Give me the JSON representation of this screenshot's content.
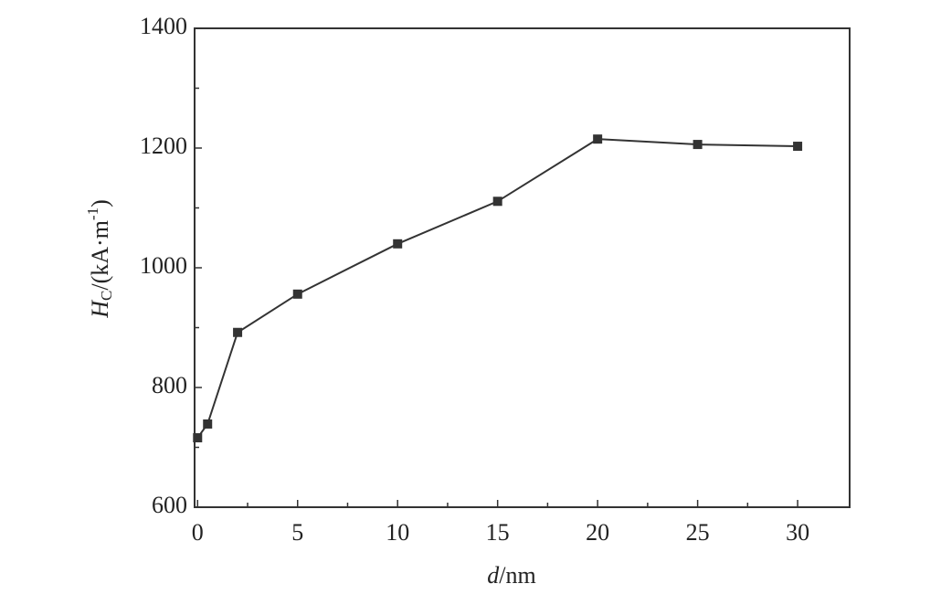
{
  "chart_data": {
    "type": "line",
    "x": [
      0,
      0.5,
      2,
      5,
      10,
      15,
      20,
      25,
      30
    ],
    "series": [
      {
        "color": "#333333",
        "values": [
          716,
          739,
          892,
          956,
          1040,
          1111,
          1215,
          1206,
          1203
        ]
      }
    ],
    "xlim": [
      -0.15,
      32.6
    ],
    "xticks": [
      0,
      5,
      10,
      15,
      20,
      25,
      30
    ],
    "ylim": [
      600,
      1400
    ],
    "yticks": [
      600,
      800,
      1000,
      1200,
      1400
    ],
    "x_label": [
      "d",
      "/nm"
    ],
    "y_label": [
      "H",
      "C",
      "/(kA·m",
      "-1",
      ")"
    ]
  }
}
